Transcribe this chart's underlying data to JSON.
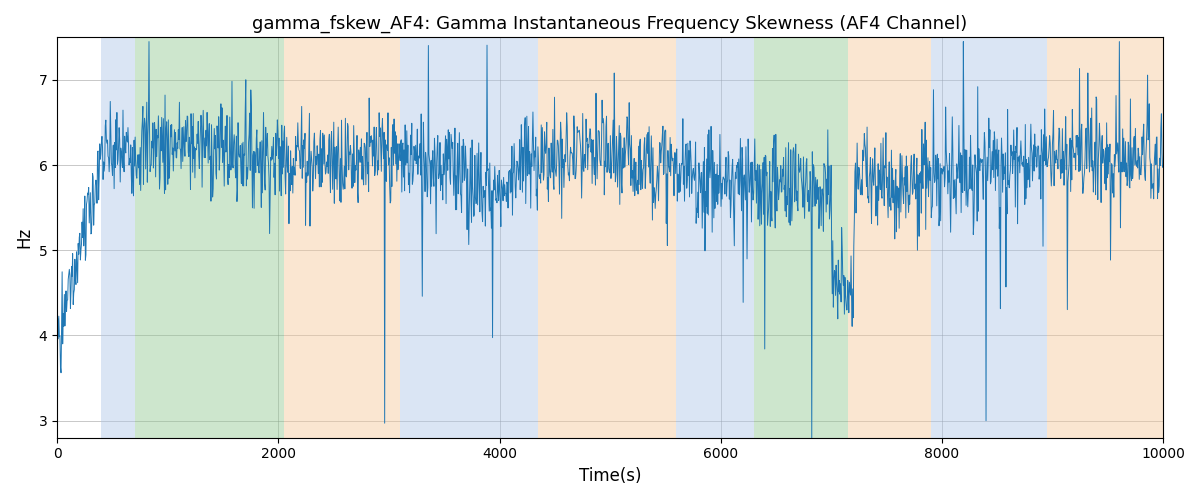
{
  "title": "gamma_fskew_AF4: Gamma Instantaneous Frequency Skewness (AF4 Channel)",
  "xlabel": "Time(s)",
  "ylabel": "Hz",
  "xlim": [
    0,
    10000
  ],
  "ylim": [
    2.8,
    7.5
  ],
  "yticks": [
    3,
    4,
    5,
    6,
    7
  ],
  "line_color": "#1f77b4",
  "line_width": 0.7,
  "background_regions": [
    {
      "xmin": 400,
      "xmax": 700,
      "color": "#aec6e8",
      "alpha": 0.45
    },
    {
      "xmin": 700,
      "xmax": 2050,
      "color": "#90c890",
      "alpha": 0.45
    },
    {
      "xmin": 2050,
      "xmax": 3100,
      "color": "#f5c89a",
      "alpha": 0.45
    },
    {
      "xmin": 3100,
      "xmax": 3650,
      "color": "#aec6e8",
      "alpha": 0.45
    },
    {
      "xmin": 3650,
      "xmax": 4350,
      "color": "#aec6e8",
      "alpha": 0.45
    },
    {
      "xmin": 4350,
      "xmax": 5600,
      "color": "#f5c89a",
      "alpha": 0.45
    },
    {
      "xmin": 5600,
      "xmax": 6300,
      "color": "#aec6e8",
      "alpha": 0.45
    },
    {
      "xmin": 6300,
      "xmax": 7150,
      "color": "#90c890",
      "alpha": 0.45
    },
    {
      "xmin": 7150,
      "xmax": 7900,
      "color": "#f5c89a",
      "alpha": 0.45
    },
    {
      "xmin": 7900,
      "xmax": 8950,
      "color": "#aec6e8",
      "alpha": 0.45
    },
    {
      "xmin": 8950,
      "xmax": 10000,
      "color": "#f5c89a",
      "alpha": 0.45
    }
  ],
  "n_points": 2000,
  "seed": 7
}
